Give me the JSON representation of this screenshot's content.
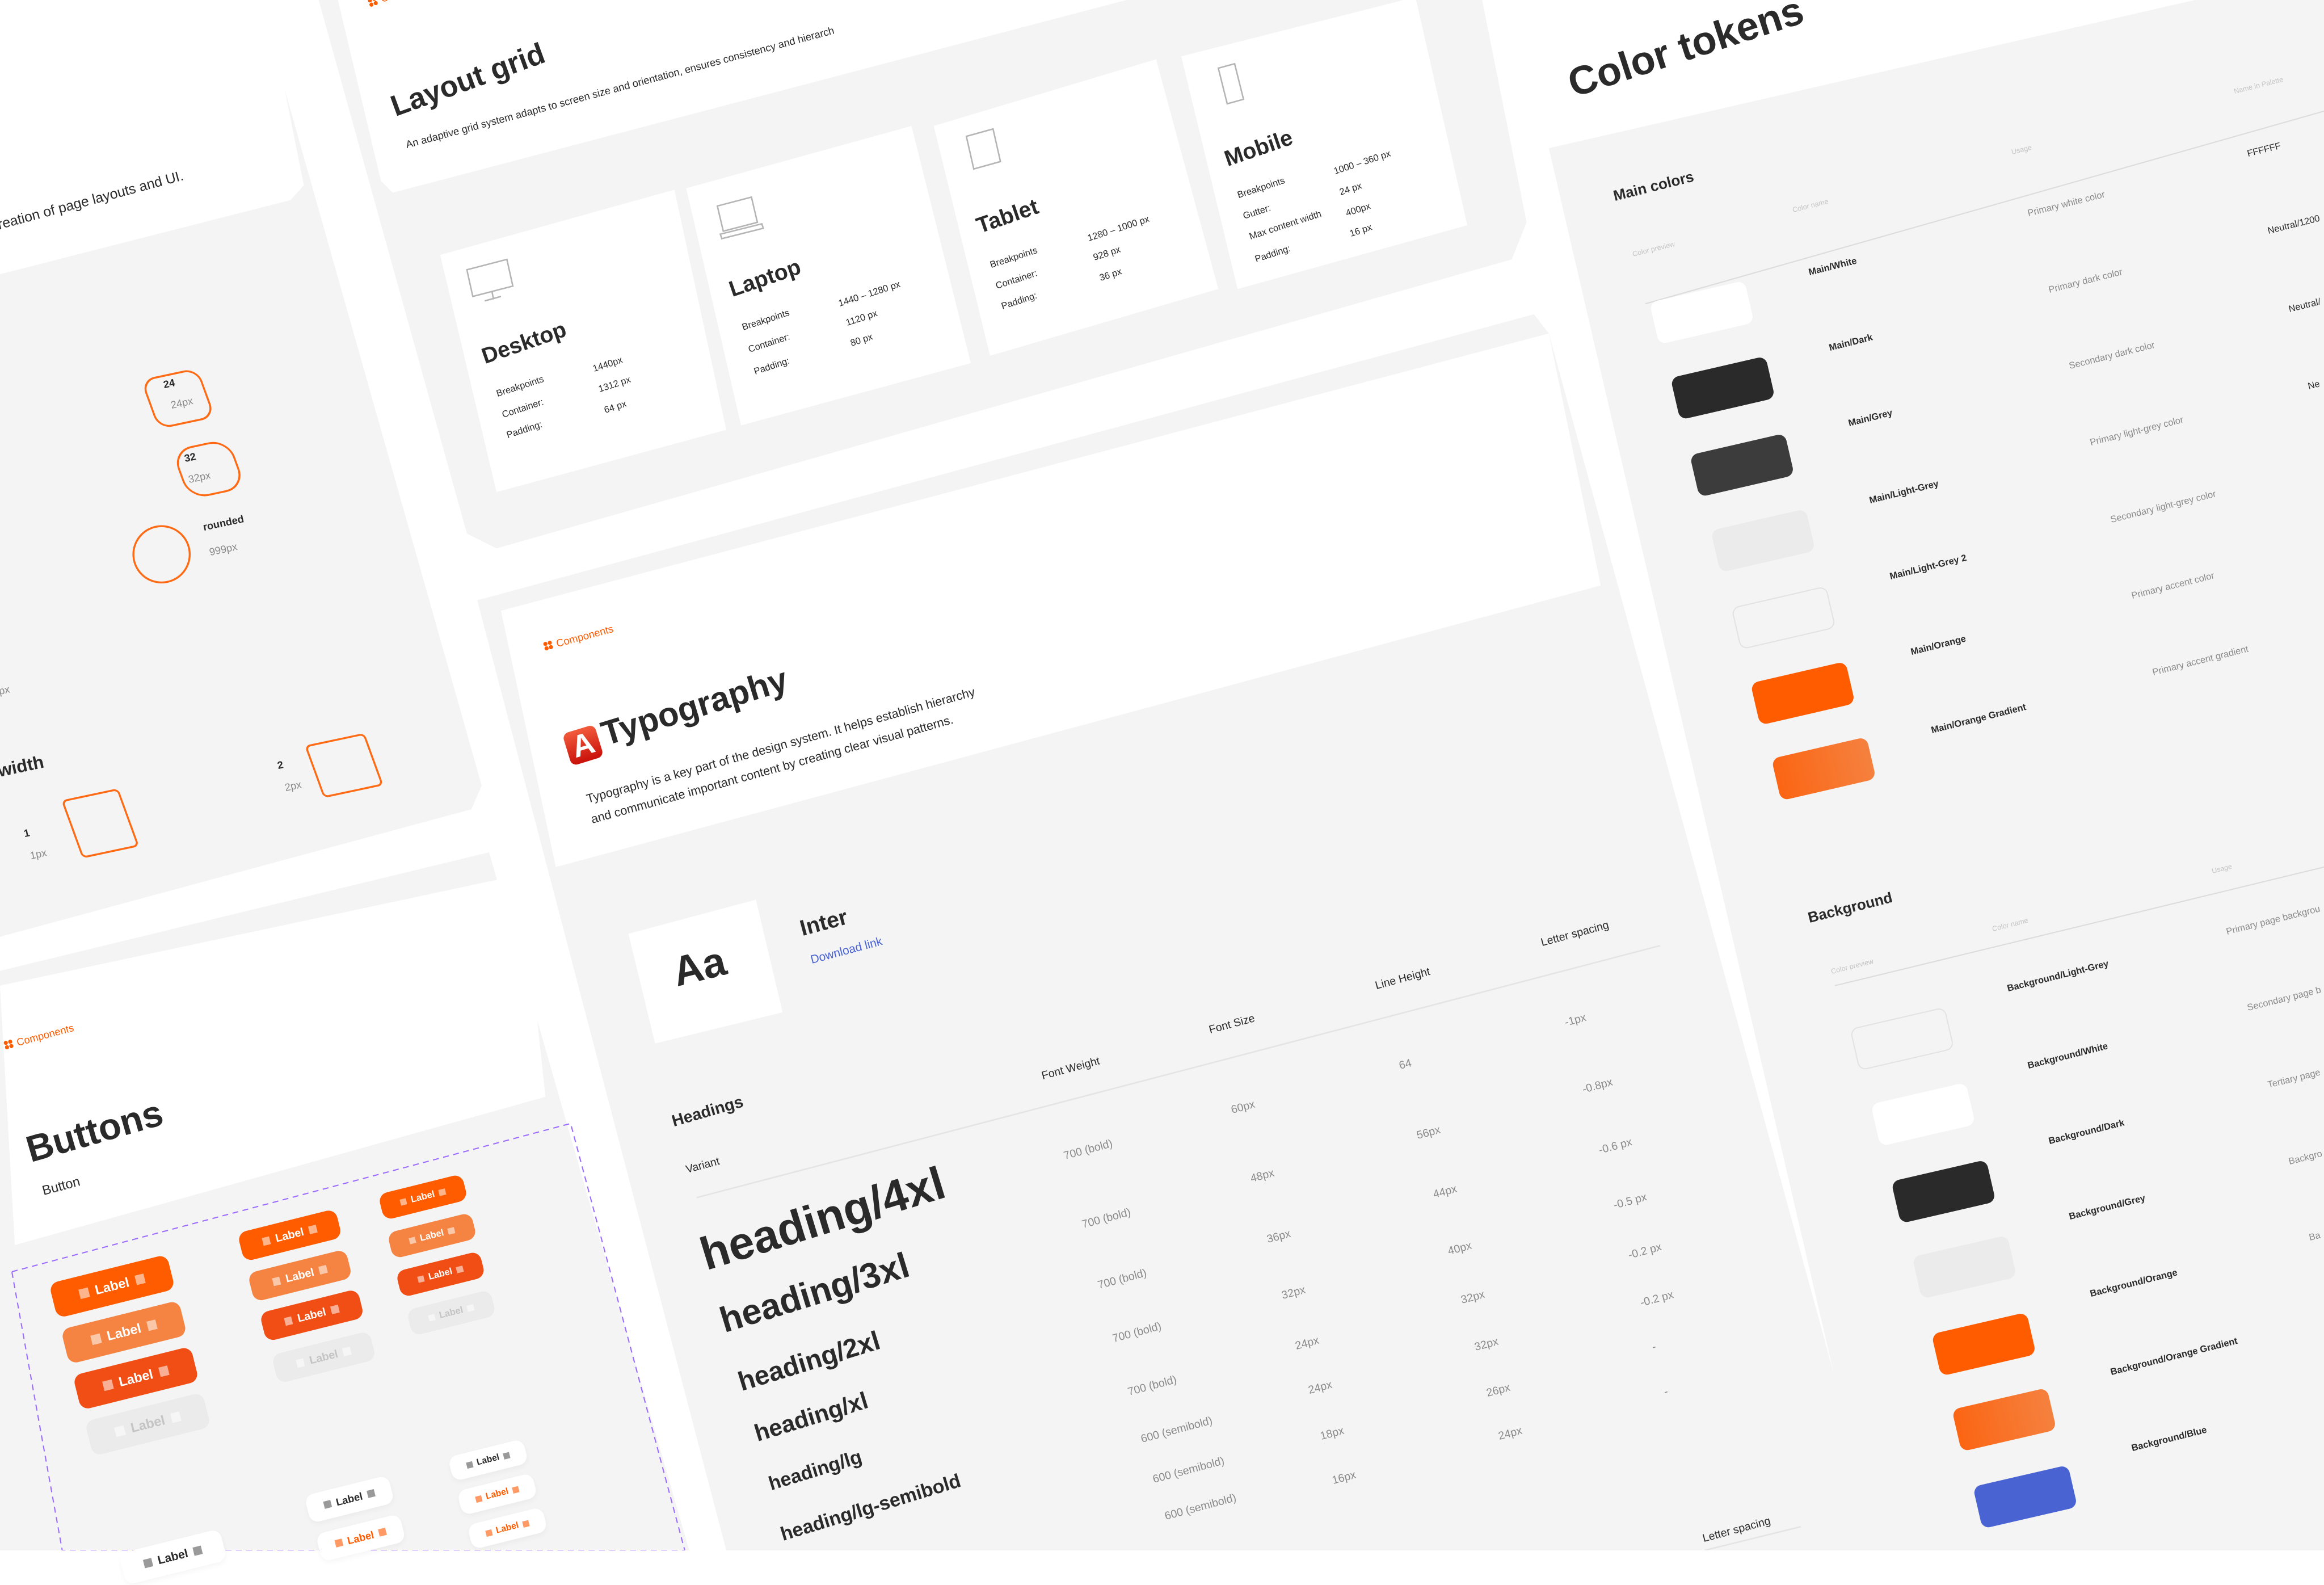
{
  "colors": {
    "panel": "#f4f4f4",
    "card": "#ffffff",
    "accent": "#ff5c00",
    "accent_light": "#f58342",
    "accent_dark": "#f04e14",
    "disabled": "#ebebeb",
    "dark": "#2a2a2a",
    "grey": "#3c3c3c",
    "light_grey": "#ebebeb",
    "blue": "#4a63d2",
    "guide": "#9b6cff"
  },
  "borders": {
    "intro_fragment": "reation of page layouts and UI.",
    "radius": [
      {
        "name": "24",
        "value": "24px"
      },
      {
        "name": "32",
        "value": "32px"
      },
      {
        "name": "rounded",
        "value": "999px"
      }
    ],
    "px_fragment": "px",
    "width_heading_fragment": "width",
    "widths": [
      {
        "name": "1",
        "value": "1px"
      },
      {
        "name": "2",
        "value": "2px"
      }
    ]
  },
  "layout_grid": {
    "breadcrumb": "Comp",
    "title": "Layout grid",
    "subtitle": "An adaptive grid system adapts to screen size and orientation, ensures consistency and hierarch",
    "devices": [
      {
        "name": "Desktop",
        "icon": "desktop-icon",
        "rows": [
          [
            "Breakpoints",
            "1440px"
          ],
          [
            "Container:",
            "1312 px"
          ],
          [
            "Padding:",
            "64 px"
          ]
        ]
      },
      {
        "name": "Laptop",
        "icon": "laptop-icon",
        "rows": [
          [
            "Breakpoints",
            "1440 – 1280 px"
          ],
          [
            "Container:",
            "1120 px"
          ],
          [
            "Padding:",
            "80 px"
          ]
        ]
      },
      {
        "name": "Tablet",
        "icon": "tablet-icon",
        "rows": [
          [
            "Breakpoints",
            "1280 – 1000 px"
          ],
          [
            "Container:",
            "928 px"
          ],
          [
            "Padding:",
            "36 px"
          ]
        ]
      },
      {
        "name": "Mobile",
        "icon": "mobile-icon",
        "rows": [
          [
            "Breakpoints",
            "1000 – 360 px"
          ],
          [
            "Gutter:",
            "24 px"
          ],
          [
            "Max content width",
            "400px"
          ],
          [
            "Padding:",
            "16 px"
          ]
        ]
      }
    ]
  },
  "typography": {
    "breadcrumb": "Components",
    "title": "Typography",
    "description_line1": "Typography is a key part of the design system. It helps establish hierarchy",
    "description_line2": "and communicate important content by creating clear visual patterns.",
    "font_sample": "Aa",
    "font_name": "Inter",
    "download_link": "Download link",
    "section": "Headings",
    "columns": [
      "Variant",
      "Font Weight",
      "Font Size",
      "Line Height",
      "Letter spacing"
    ],
    "rows": [
      {
        "variant": "heading/4xl",
        "weight": "700 (bold)",
        "size": "60px",
        "line_height": "64",
        "letter_spacing": "-1px"
      },
      {
        "variant": "heading/3xl",
        "weight": "700 (bold)",
        "size": "48px",
        "line_height": "56px",
        "letter_spacing": "-0.8px"
      },
      {
        "variant": "heading/2xl",
        "weight": "700 (bold)",
        "size": "36px",
        "line_height": "44px",
        "letter_spacing": "-0.6 px"
      },
      {
        "variant": "heading/xl",
        "weight": "700 (bold)",
        "size": "32px",
        "line_height": "40px",
        "letter_spacing": "-0.5 px"
      },
      {
        "variant": "heading/lg",
        "weight": "700 (bold)",
        "size": "24px",
        "line_height": "32px",
        "letter_spacing": "-0.2 px"
      },
      {
        "variant": "heading/lg-semibold",
        "weight": "600 (semibold)",
        "size": "24px",
        "line_height": "32px",
        "letter_spacing": "-0.2 px"
      },
      {
        "weight": "600 (semibold)",
        "size": "18px",
        "line_height": "26px",
        "letter_spacing": "-"
      },
      {
        "weight": "600 (semibold)",
        "size": "16px",
        "line_height": "24px",
        "letter_spacing": "-"
      }
    ],
    "next_section_header": "Letter spacing"
  },
  "color_tokens": {
    "title": "Color tokens",
    "main": {
      "title": "Main colors",
      "columns": [
        "Color preview",
        "Color name",
        "Usage",
        "Name in Palette"
      ],
      "rows": [
        {
          "name": "Main/White",
          "usage": "Primary white color",
          "palette": "FFFFFF",
          "color": "#ffffff"
        },
        {
          "name": "Main/Dark",
          "usage": "Primary dark color",
          "palette": "Neutral/1200",
          "color": "#2a2a2a"
        },
        {
          "name": "Main/Grey",
          "usage": "Secondary dark color",
          "palette": "Neutral/",
          "color": "#3c3c3c"
        },
        {
          "name": "Main/Light-Grey",
          "usage": "Primary light-grey color",
          "palette": "Ne",
          "color": "#ebebeb"
        },
        {
          "name": "Main/Light-Grey 2",
          "usage": "Secondary light-grey color",
          "color": "#f4f4f4"
        },
        {
          "name": "Main/Orange",
          "usage": "Primary accent color",
          "color": "#ff5c00"
        },
        {
          "name": "Main/Orange Gradient",
          "usage": "Primary accent gradient",
          "color": "#f5813f"
        }
      ]
    },
    "background": {
      "title": "Background",
      "columns": [
        "Color preview",
        "Color name",
        "Usage"
      ],
      "rows": [
        {
          "name": "Background/Light-Grey",
          "usage": "Primary page backgrou",
          "color": "#f4f4f4"
        },
        {
          "name": "Background/White",
          "usage": "Secondary page b",
          "color": "#ffffff"
        },
        {
          "name": "Background/Dark",
          "usage": "Tertiary page",
          "color": "#2a2a2a"
        },
        {
          "name": "Background/Grey",
          "usage": "Backgro",
          "color": "#ebebeb"
        },
        {
          "name": "Background/Orange",
          "usage": "Ba",
          "color": "#ff5c00"
        },
        {
          "name": "Background/Orange Gradient",
          "color": "#f5813f"
        },
        {
          "name": "Background/Blue",
          "color": "#4a63d2"
        }
      ]
    }
  },
  "buttons": {
    "breadcrumb": "Components",
    "title": "Buttons",
    "subtitle": "Button",
    "label": "Label"
  }
}
